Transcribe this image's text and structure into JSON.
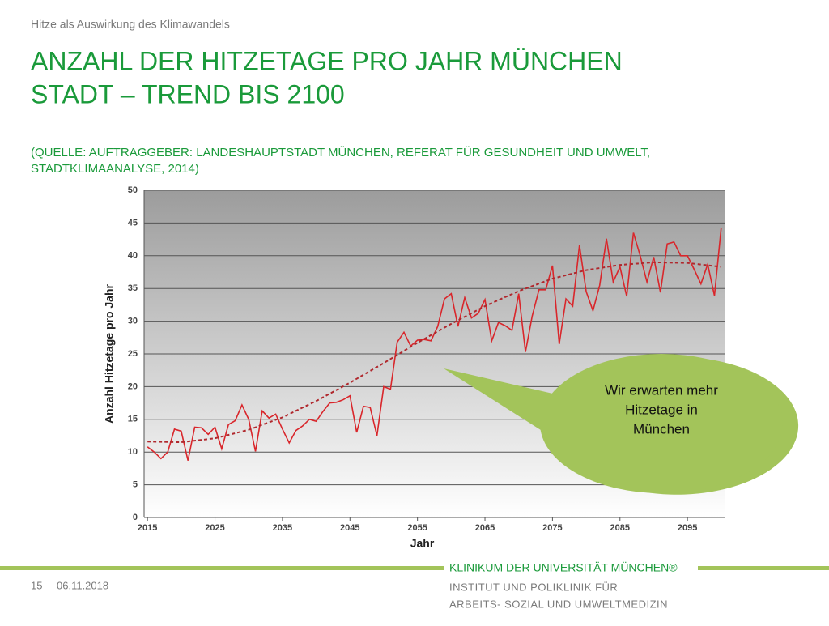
{
  "header": "Hitze als Auswirkung des Klimawandels",
  "title": [
    "ANZAHL DER HITZETAGE PRO JAHR MÜNCHEN",
    "STADT – TREND BIS 2100"
  ],
  "source": [
    "(QUELLE: AUFTRAGGEBER: LANDESHAUPTSTADT MÜNCHEN, REFERAT FÜR GESUNDHEIT UND UMWELT,",
    "STADTKLIMAANALYSE, 2014)"
  ],
  "callout": [
    "Wir erwarten mehr",
    "Hitzetage in",
    "München"
  ],
  "footer": {
    "page": "15",
    "date": "06.11.2018",
    "brand": "KLINIKUM DER UNIVERSITÄT MÜNCHEN®",
    "institute": [
      "INSTITUT  UND POLIKLINIK FÜR",
      "ARBEITS- SOZIAL UND UMWELTMEDIZIN"
    ]
  },
  "chart_data": {
    "type": "line",
    "x_label": "Jahr",
    "y_label": "Anzahl  Hitzetage pro Jahr",
    "xlim": [
      2014.5,
      2100.5
    ],
    "ylim": [
      0,
      50
    ],
    "xticks": [
      2015,
      2025,
      2035,
      2045,
      2055,
      2065,
      2075,
      2085,
      2095
    ],
    "yticks": [
      0,
      5,
      10,
      15,
      20,
      25,
      30,
      35,
      40,
      45,
      50
    ],
    "grid": true,
    "series": [
      {
        "color": "#d9262b",
        "line_style": "solid",
        "x": [
          2015,
          2016,
          2017,
          2018,
          2019,
          2020,
          2021,
          2022,
          2023,
          2024,
          2025,
          2026,
          2027,
          2028,
          2029,
          2030,
          2031,
          2032,
          2033,
          2034,
          2035,
          2036,
          2037,
          2038,
          2039,
          2040,
          2041,
          2042,
          2043,
          2044,
          2045,
          2046,
          2047,
          2048,
          2049,
          2050,
          2051,
          2052,
          2053,
          2054,
          2055,
          2056,
          2057,
          2058,
          2059,
          2060,
          2061,
          2062,
          2063,
          2064,
          2065,
          2066,
          2067,
          2068,
          2069,
          2070,
          2071,
          2072,
          2073,
          2074,
          2075,
          2076,
          2077,
          2078,
          2079,
          2080,
          2081,
          2082,
          2083,
          2084,
          2085,
          2086,
          2087,
          2088,
          2089,
          2090,
          2091,
          2092,
          2093,
          2094,
          2095,
          2096,
          2097,
          2098,
          2099,
          2100
        ],
        "values": [
          10.8,
          10,
          9,
          10,
          13.5,
          13.2,
          8.7,
          13.8,
          13.7,
          12.7,
          13.8,
          10.5,
          14.2,
          14.8,
          17.2,
          15,
          10.1,
          16.3,
          15.2,
          15.8,
          13.5,
          11.4,
          13.3,
          14,
          15,
          14.7,
          16.2,
          17.5,
          17.6,
          18,
          18.6,
          13,
          17,
          16.8,
          12.5,
          20,
          19.6,
          26.8,
          28.3,
          26.2,
          27.1,
          27.2,
          27,
          29.2,
          33.4,
          34.2,
          29.2,
          33.6,
          30.5,
          31.2,
          33.3,
          27,
          29.8,
          29.3,
          28.6,
          34.2,
          25.3,
          30.8,
          34.8,
          34.8,
          38.5,
          26.5,
          33.4,
          32.3,
          41.6,
          34.5,
          31.6,
          35.5,
          42.6,
          36,
          38.3,
          33.8,
          43.5,
          40,
          36,
          39.8,
          34.4,
          41.8,
          42.1,
          40,
          40,
          37.9,
          35.7,
          38.7,
          33.9,
          44.3
        ]
      },
      {
        "color": "#b0282d",
        "line_style": "dashed",
        "x": [
          2015,
          2020,
          2025,
          2030,
          2035,
          2040,
          2045,
          2050,
          2055,
          2060,
          2065,
          2070,
          2075,
          2080,
          2085,
          2090,
          2095,
          2100
        ],
        "values": [
          11.6,
          11.5,
          12.1,
          13.4,
          15.3,
          17.8,
          20.6,
          23.6,
          26.7,
          29.6,
          32.3,
          34.6,
          36.5,
          37.8,
          38.6,
          39,
          38.9,
          38.3
        ]
      }
    ]
  }
}
